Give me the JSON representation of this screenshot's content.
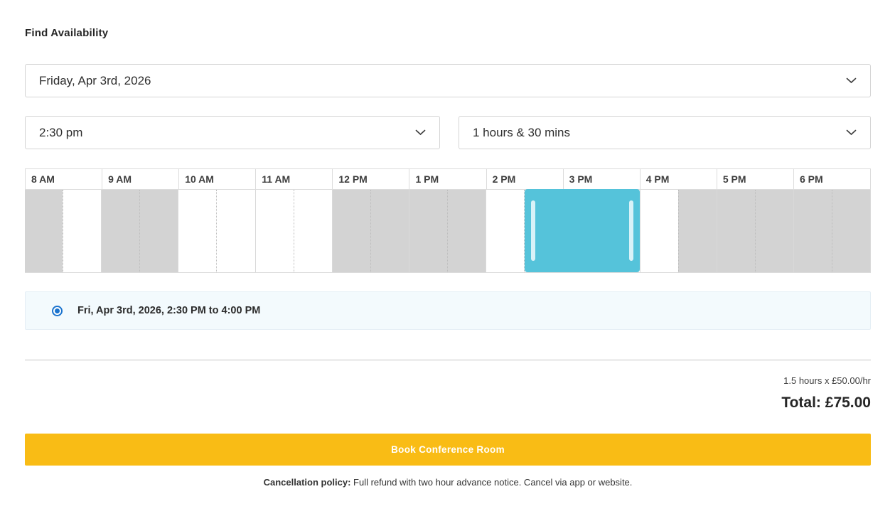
{
  "header": {
    "title": "Find Availability"
  },
  "date_select": {
    "value": "Friday, Apr 3rd, 2026"
  },
  "time_select": {
    "value": "2:30 pm"
  },
  "duration_select": {
    "value": "1 hours & 30 mins"
  },
  "timeline": {
    "hours": [
      {
        "label": "8 AM",
        "slots": [
          "booked",
          "free"
        ]
      },
      {
        "label": "9 AM",
        "slots": [
          "booked",
          "booked"
        ]
      },
      {
        "label": "10 AM",
        "slots": [
          "free",
          "free"
        ]
      },
      {
        "label": "11 AM",
        "slots": [
          "free",
          "free"
        ]
      },
      {
        "label": "12 PM",
        "slots": [
          "booked",
          "booked"
        ]
      },
      {
        "label": "1 PM",
        "slots": [
          "booked",
          "booked"
        ]
      },
      {
        "label": "2 PM",
        "slots": [
          "free",
          "selected"
        ]
      },
      {
        "label": "3 PM",
        "slots": [
          "selected",
          "selected"
        ]
      },
      {
        "label": "4 PM",
        "slots": [
          "free",
          "booked"
        ]
      },
      {
        "label": "5 PM",
        "slots": [
          "booked",
          "booked"
        ]
      },
      {
        "label": "6 PM",
        "slots": [
          "booked",
          "booked"
        ]
      }
    ],
    "selection": {
      "start": "2:30 PM",
      "end": "4:00 PM",
      "start_slot_index": 13,
      "length_slots": 3
    }
  },
  "selected_slot": {
    "label": "Fri, Apr 3rd, 2026, 2:30 PM to 4:00 PM",
    "checked": true
  },
  "pricing": {
    "breakdown": "1.5 hours x £50.00/hr",
    "total": "Total: £75.00"
  },
  "book_button": {
    "label": "Book Conference Room"
  },
  "policy": {
    "bold": "Cancellation policy:",
    "text": " Full refund with two hour advance notice. Cancel via app or website."
  },
  "colors": {
    "selection_blue": "#55c3da",
    "selection_handle": "#d9f2f8",
    "booked_gray": "#d3d3d3",
    "radio_blue": "#1a73ce",
    "choice_bg": "#f3fafd",
    "button_yellow": "#f9bc15"
  }
}
